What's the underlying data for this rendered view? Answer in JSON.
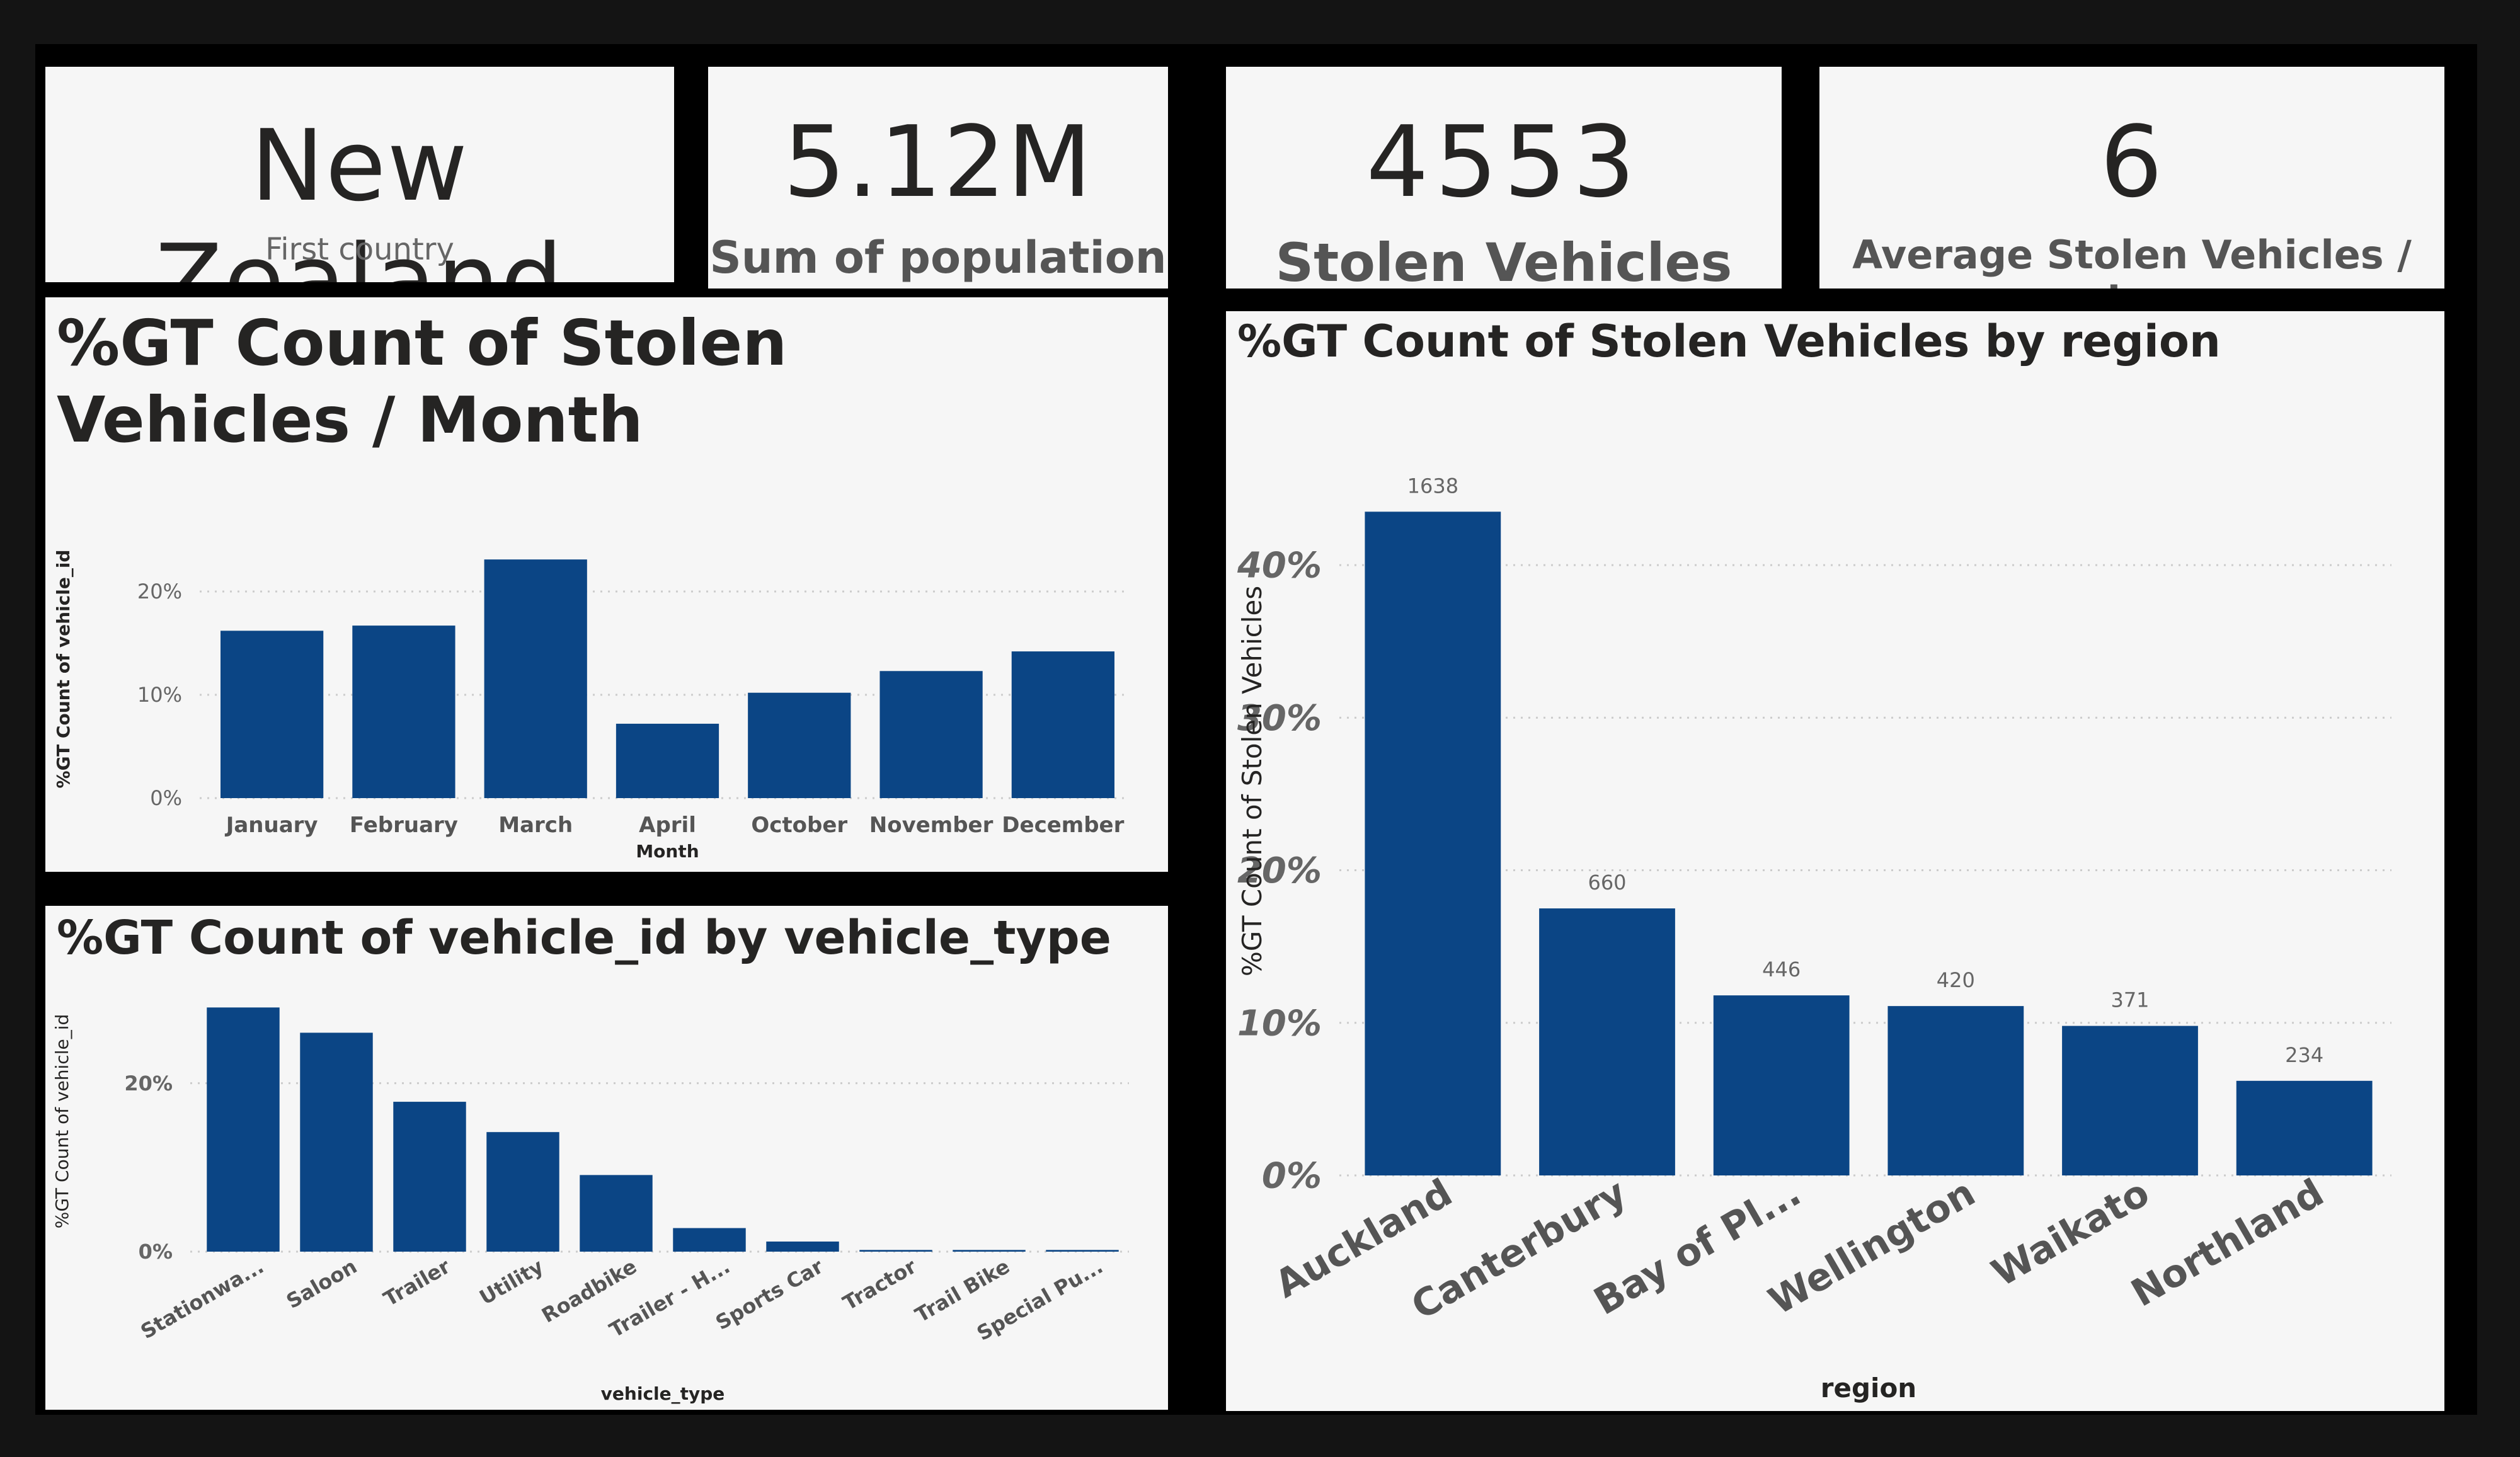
{
  "kpis": {
    "country": {
      "value": "New Zealand",
      "label": "First country"
    },
    "population": {
      "value": "5.12M",
      "label": "Sum of population"
    },
    "stolen": {
      "value": "4553",
      "label": "Stolen Vehicles"
    },
    "per_day": {
      "value": "6",
      "label": "Average Stolen Vehicles / day"
    }
  },
  "colors": {
    "bar": "#0b4585",
    "card": "#f6f6f6",
    "grid": "#cccccc"
  },
  "chart_data": [
    {
      "id": "month",
      "type": "bar",
      "title": "%GT Count of Stolen Vehicles / Month",
      "xlabel": "Month",
      "ylabel": "%GT Count of vehicle_id",
      "categories": [
        "January",
        "February",
        "March",
        "April",
        "October",
        "November",
        "December"
      ],
      "values": [
        16.2,
        16.7,
        23.1,
        7.2,
        10.2,
        12.3,
        14.2
      ],
      "ylim": [
        0,
        25
      ],
      "yticks": [
        "0%",
        "10%",
        "20%"
      ],
      "grid": true
    },
    {
      "id": "vehicle_type",
      "type": "bar",
      "title": "%GT Count of vehicle_id by vehicle_type",
      "xlabel": "vehicle_type",
      "ylabel": "%GT Count of vehicle_id",
      "categories": [
        "Stationwa...",
        "Saloon",
        "Trailer",
        "Utility",
        "Roadbike",
        "Trailer - H...",
        "Sports Car",
        "Tractor",
        "Trail Bike",
        "Special Pu..."
      ],
      "values": [
        29.0,
        26.0,
        17.8,
        14.2,
        9.1,
        2.8,
        1.2,
        0.2,
        0.2,
        0.2
      ],
      "ylim": [
        0,
        30
      ],
      "yticks": [
        "0%",
        "20%"
      ],
      "grid": true
    },
    {
      "id": "region",
      "type": "bar",
      "title": "%GT Count of Stolen Vehicles by region",
      "xlabel": "region",
      "ylabel": "%GT Count of Stolen Vehicles",
      "categories": [
        "Auckland",
        "Canterbury",
        "Bay of Pl...",
        "Wellington",
        "Waikato",
        "Northland"
      ],
      "values": [
        43.5,
        17.5,
        11.8,
        11.1,
        9.8,
        6.2
      ],
      "data_labels": [
        "1638",
        "660",
        "446",
        "420",
        "371",
        "234"
      ],
      "ylim": [
        0,
        45
      ],
      "yticks": [
        "0%",
        "10%",
        "20%",
        "30%",
        "40%"
      ],
      "grid": true
    }
  ]
}
